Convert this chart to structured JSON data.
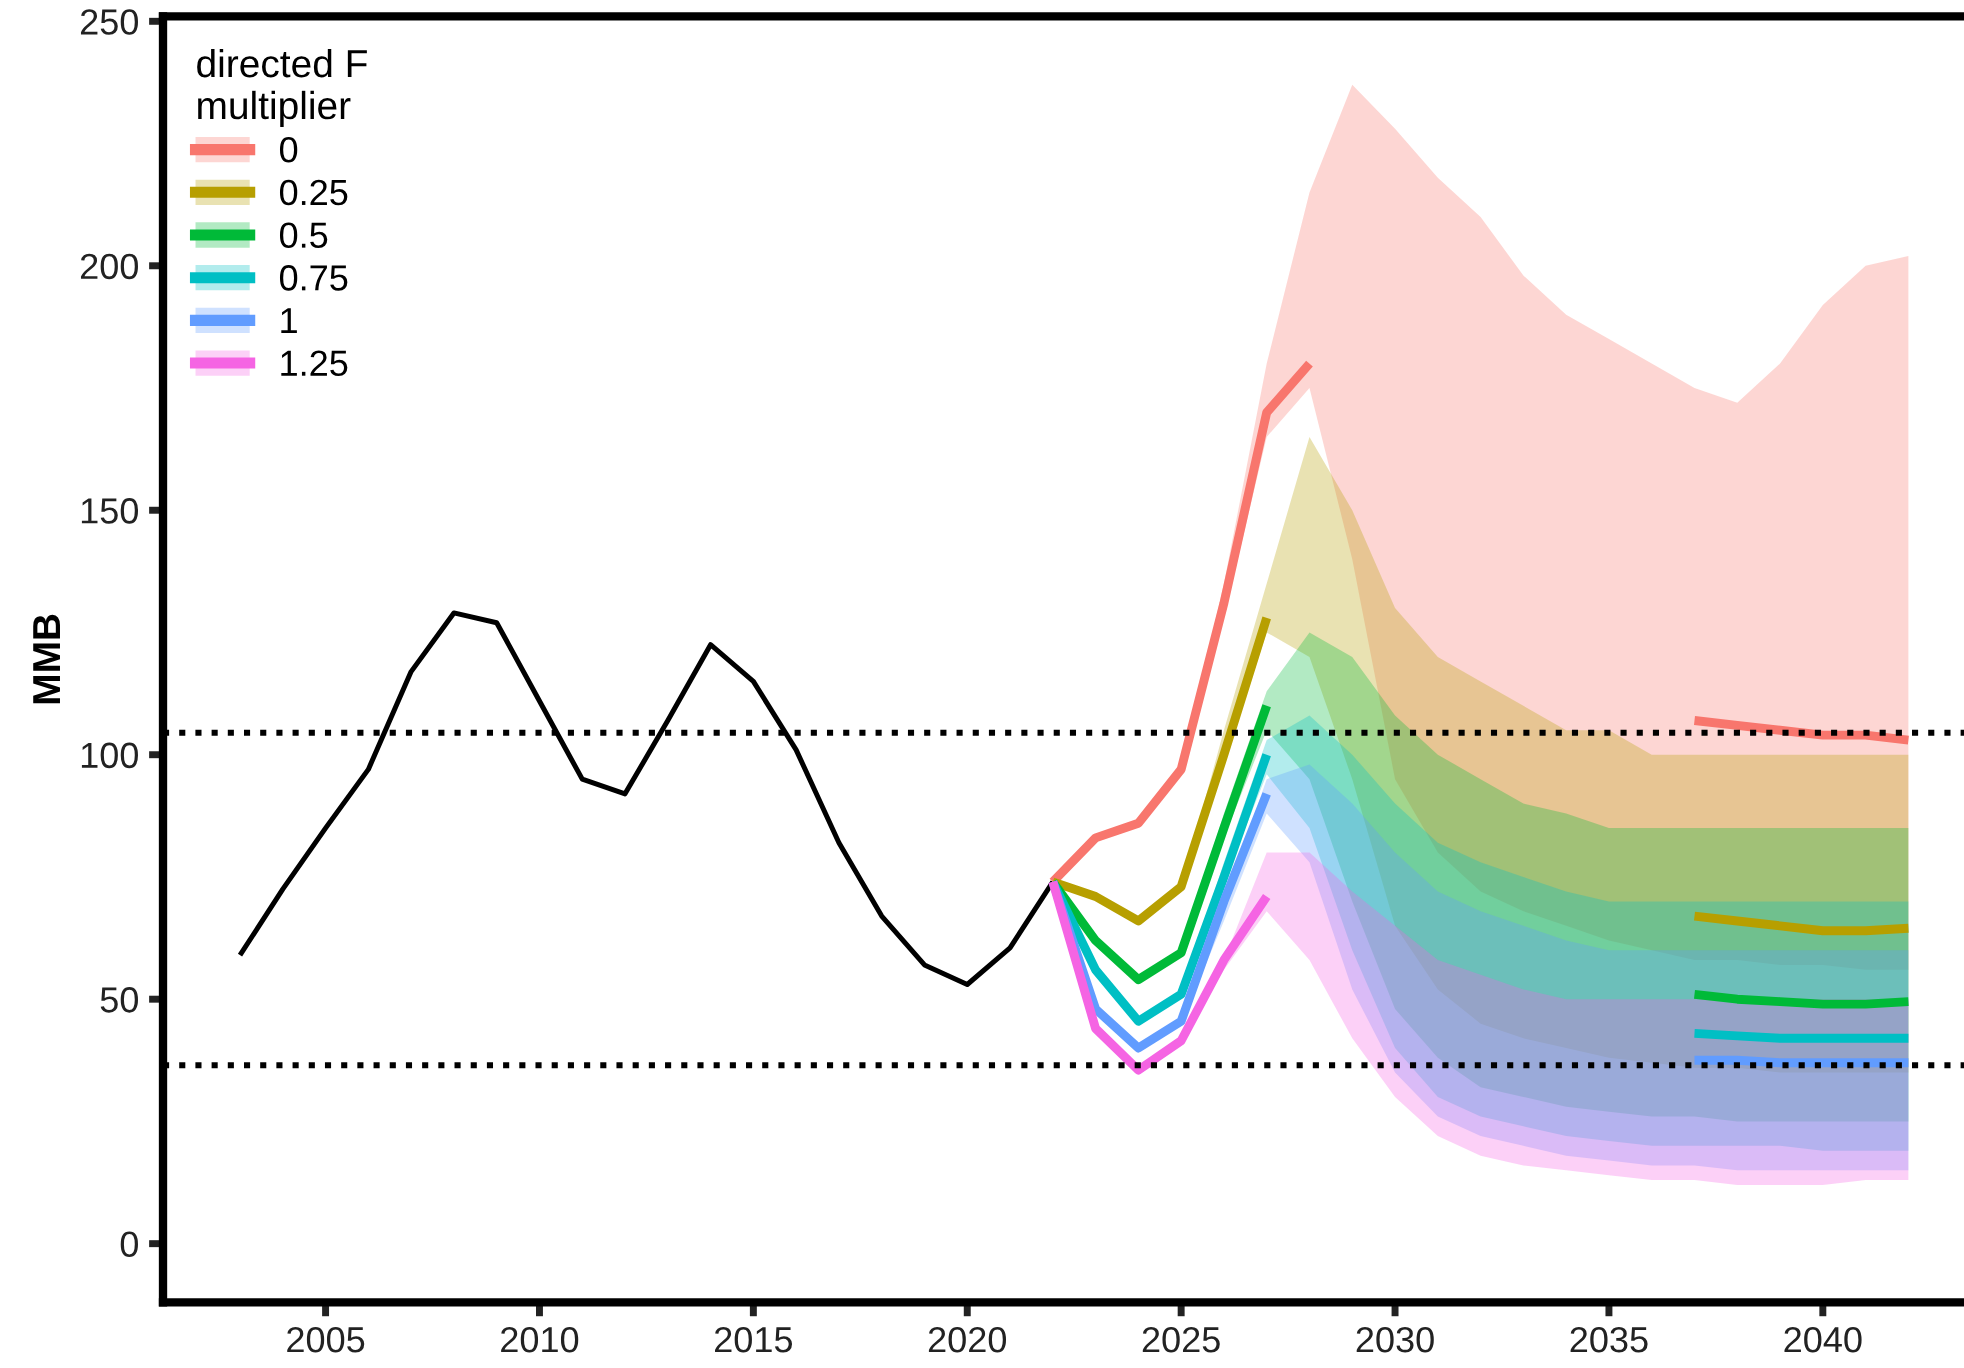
{
  "chart_data": {
    "type": "line",
    "ylabel": "MMB",
    "legend_title": "directed F\nmultiplier",
    "xlim": [
      2001.2,
      2043.3
    ],
    "xticks": [
      2005,
      2010,
      2015,
      2020,
      2025,
      2030,
      2035,
      2040
    ],
    "ylim": [
      -12,
      251
    ],
    "yticks": [
      0,
      50,
      100,
      150,
      200,
      250
    ],
    "grid": false,
    "legend": "top left",
    "marker": "none",
    "line_style": "solid",
    "ref_lines": [
      {
        "axis": "y",
        "value": 104.5,
        "label": null,
        "color": "#000000",
        "line_style": "dotted"
      },
      {
        "axis": "y",
        "value": 36.5,
        "label": null,
        "color": "#000000",
        "line_style": "dotted"
      }
    ],
    "series": [
      {
        "color": "#000000",
        "x": [
          2003,
          2004,
          2005,
          2006,
          2007,
          2008,
          2009,
          2010,
          2011,
          2012,
          2013,
          2014,
          2015,
          2016,
          2017,
          2018,
          2019,
          2020,
          2021,
          2022
        ],
        "values": [
          59,
          72.5,
          85,
          97,
          117,
          129,
          127,
          111,
          95,
          92,
          107,
          122.5,
          115,
          101,
          82,
          67,
          57,
          53,
          60.5,
          74
        ]
      },
      {
        "name": "0",
        "color": "#F8766D",
        "x": [
          2022,
          2023,
          2024,
          2025,
          2026,
          2027,
          2028,
          2029,
          2030,
          2031,
          2032,
          2033,
          2034,
          2035,
          2036,
          2037,
          2038,
          2039,
          2040,
          2041,
          2042
        ],
        "values": [
          74,
          83,
          86,
          97,
          131,
          170,
          180,
          null,
          null,
          null,
          null,
          null,
          null,
          null,
          null,
          107,
          106,
          105,
          104,
          104,
          103
        ],
        "upper": [
          74,
          83,
          86,
          97,
          135,
          180,
          215,
          237,
          228,
          218,
          210,
          198,
          190,
          185,
          180,
          175,
          172,
          180,
          192,
          200,
          202
        ],
        "lower": [
          74,
          83,
          86,
          97,
          128,
          165,
          175,
          140,
          95,
          80,
          72,
          68,
          65,
          62,
          60,
          58,
          58,
          57,
          57,
          56,
          56
        ]
      },
      {
        "name": "0.25",
        "color": "#B79F00",
        "x": [
          2022,
          2023,
          2024,
          2025,
          2026,
          2027,
          2028,
          2029,
          2030,
          2031,
          2032,
          2033,
          2034,
          2035,
          2036,
          2037,
          2038,
          2039,
          2040,
          2041,
          2042
        ],
        "values": [
          74,
          71,
          66,
          73,
          100,
          128,
          null,
          null,
          null,
          null,
          null,
          null,
          null,
          null,
          null,
          67,
          66,
          65,
          64,
          64,
          64.5
        ],
        "upper": [
          74,
          71,
          66,
          73,
          105,
          135,
          165,
          150,
          130,
          120,
          115,
          110,
          105,
          105,
          100,
          100,
          100,
          100,
          100,
          100,
          100
        ],
        "lower": [
          74,
          71,
          66,
          73,
          98,
          125,
          120,
          95,
          65,
          52,
          45,
          42,
          40,
          38,
          37,
          36,
          36,
          35,
          35,
          35,
          35
        ]
      },
      {
        "name": "0.5",
        "color": "#00BA38",
        "x": [
          2022,
          2023,
          2024,
          2025,
          2026,
          2027,
          2028,
          2029,
          2030,
          2031,
          2032,
          2033,
          2034,
          2035,
          2036,
          2037,
          2038,
          2039,
          2040,
          2041,
          2042
        ],
        "values": [
          74,
          62,
          54,
          59.5,
          85,
          110,
          null,
          null,
          null,
          null,
          null,
          null,
          null,
          null,
          null,
          51,
          50,
          49.5,
          49,
          49,
          49.5
        ],
        "upper": [
          74,
          63,
          54,
          60,
          88,
          113,
          125,
          120,
          108,
          100,
          95,
          90,
          88,
          85,
          85,
          85,
          85,
          85,
          85,
          85,
          85
        ],
        "lower": [
          74,
          62,
          54,
          59,
          83,
          105,
          95,
          70,
          48,
          38,
          32,
          30,
          28,
          27,
          26,
          26,
          25,
          25,
          25,
          25,
          25
        ]
      },
      {
        "name": "0.75",
        "color": "#00BFC4",
        "x": [
          2022,
          2023,
          2024,
          2025,
          2026,
          2027,
          2028,
          2029,
          2030,
          2031,
          2032,
          2033,
          2034,
          2035,
          2036,
          2037,
          2038,
          2039,
          2040,
          2041,
          2042
        ],
        "values": [
          74,
          56,
          45.5,
          51,
          75,
          100,
          null,
          null,
          null,
          null,
          null,
          null,
          null,
          null,
          null,
          43,
          42.5,
          42,
          42,
          42,
          42
        ],
        "upper": [
          74,
          56,
          46,
          51,
          78,
          103,
          108,
          100,
          90,
          82,
          78,
          75,
          72,
          70,
          70,
          70,
          70,
          70,
          70,
          70,
          70
        ],
        "lower": [
          74,
          56,
          45,
          51,
          74,
          96,
          85,
          60,
          40,
          30,
          26,
          24,
          22,
          21,
          20,
          20,
          20,
          20,
          19,
          19,
          19
        ]
      },
      {
        "name": "1",
        "color": "#619CFF",
        "x": [
          2022,
          2023,
          2024,
          2025,
          2026,
          2027,
          2028,
          2029,
          2030,
          2031,
          2032,
          2033,
          2034,
          2035,
          2036,
          2037,
          2038,
          2039,
          2040,
          2041,
          2042
        ],
        "values": [
          74,
          48,
          40,
          45.5,
          70,
          92,
          null,
          null,
          null,
          null,
          null,
          null,
          null,
          null,
          null,
          37.5,
          37.5,
          37,
          37,
          37,
          37
        ],
        "upper": [
          74,
          48,
          40,
          46,
          70,
          95,
          98,
          90,
          80,
          72,
          68,
          65,
          62,
          60,
          60,
          60,
          60,
          60,
          60,
          60,
          60
        ],
        "lower": [
          74,
          48,
          40,
          45,
          66,
          88,
          78,
          52,
          35,
          26,
          22,
          20,
          18,
          17,
          16,
          16,
          15,
          15,
          15,
          15,
          15
        ]
      },
      {
        "name": "1.25",
        "color": "#F564E3",
        "x": [
          2022,
          2023,
          2024,
          2025,
          2026,
          2027,
          2028,
          2029,
          2030,
          2031,
          2032,
          2033,
          2034,
          2035,
          2036,
          2037,
          2038,
          2039,
          2040,
          2041,
          2042
        ],
        "values": [
          74,
          44,
          35.5,
          41.5,
          58,
          71,
          null,
          null,
          null,
          null,
          null,
          null,
          null,
          null,
          null,
          null,
          null,
          null,
          null,
          null,
          null
        ],
        "upper": [
          74,
          44,
          36,
          42,
          58,
          80,
          80,
          72,
          65,
          58,
          55,
          52,
          50,
          50,
          50,
          50,
          50,
          50,
          50,
          50,
          50
        ],
        "lower": [
          74,
          44,
          35,
          41,
          56,
          68,
          58,
          42,
          30,
          22,
          18,
          16,
          15,
          14,
          13,
          13,
          12,
          12,
          12,
          13,
          13
        ]
      }
    ]
  }
}
